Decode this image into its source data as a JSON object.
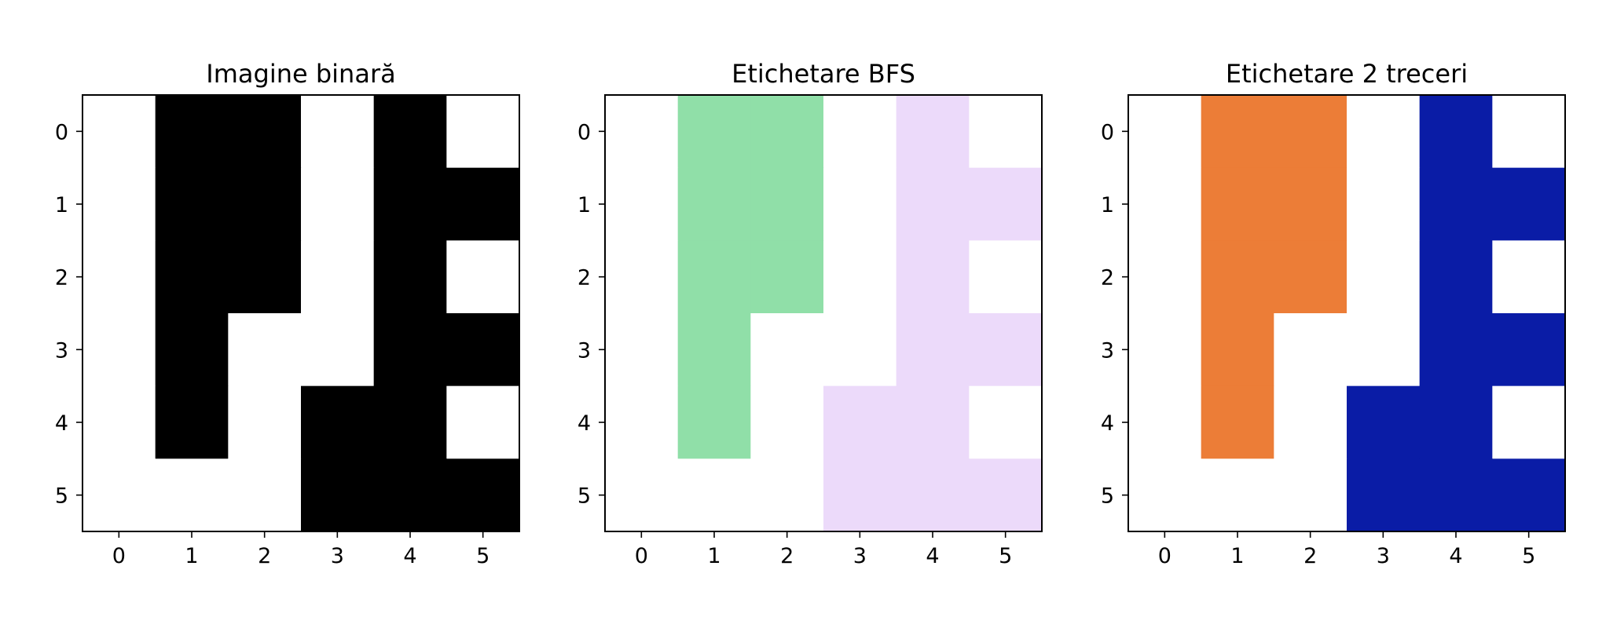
{
  "chart_data": [
    {
      "type": "heatmap",
      "title": "Imagine binară",
      "x_ticks": [
        "0",
        "1",
        "2",
        "3",
        "4",
        "5"
      ],
      "y_ticks": [
        "0",
        "1",
        "2",
        "3",
        "4",
        "5"
      ],
      "colors": {
        "0": "#ffffff",
        "1": "#000000"
      },
      "values": [
        [
          0,
          1,
          1,
          0,
          1,
          0
        ],
        [
          0,
          1,
          1,
          0,
          1,
          1
        ],
        [
          0,
          1,
          1,
          0,
          1,
          0
        ],
        [
          0,
          1,
          0,
          0,
          1,
          1
        ],
        [
          0,
          1,
          0,
          1,
          1,
          0
        ],
        [
          0,
          0,
          0,
          1,
          1,
          1
        ]
      ]
    },
    {
      "type": "heatmap",
      "title": "Etichetare BFS",
      "x_ticks": [
        "0",
        "1",
        "2",
        "3",
        "4",
        "5"
      ],
      "y_ticks": [
        "0",
        "1",
        "2",
        "3",
        "4",
        "5"
      ],
      "colors": {
        "0": "#ffffff",
        "1": "#90dfa8",
        "2": "#ecdafa"
      },
      "values": [
        [
          0,
          1,
          1,
          0,
          2,
          0
        ],
        [
          0,
          1,
          1,
          0,
          2,
          2
        ],
        [
          0,
          1,
          1,
          0,
          2,
          0
        ],
        [
          0,
          1,
          0,
          0,
          2,
          2
        ],
        [
          0,
          1,
          0,
          2,
          2,
          0
        ],
        [
          0,
          0,
          0,
          2,
          2,
          2
        ]
      ]
    },
    {
      "type": "heatmap",
      "title": "Etichetare 2 treceri",
      "x_ticks": [
        "0",
        "1",
        "2",
        "3",
        "4",
        "5"
      ],
      "y_ticks": [
        "0",
        "1",
        "2",
        "3",
        "4",
        "5"
      ],
      "colors": {
        "0": "#ffffff",
        "1": "#ec7d37",
        "2": "#0a1ca6"
      },
      "values": [
        [
          0,
          1,
          1,
          0,
          2,
          0
        ],
        [
          0,
          1,
          1,
          0,
          2,
          2
        ],
        [
          0,
          1,
          1,
          0,
          2,
          0
        ],
        [
          0,
          1,
          0,
          0,
          2,
          2
        ],
        [
          0,
          1,
          0,
          2,
          2,
          0
        ],
        [
          0,
          0,
          0,
          2,
          2,
          2
        ]
      ]
    }
  ]
}
